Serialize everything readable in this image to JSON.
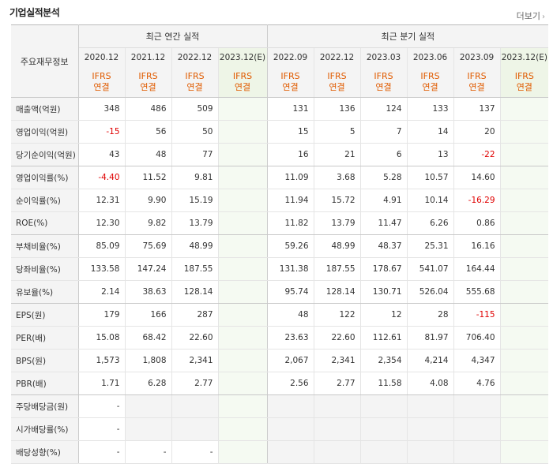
{
  "page_title": "기업실적분석",
  "more_label": "더보기",
  "more_icon": "chevron-right-icon",
  "corner_label": "주요재무정보",
  "group_annual": "최근 연간 실적",
  "group_quarter": "최근 분기 실적",
  "periods": [
    "2020.12",
    "2021.12",
    "2022.12",
    "2023.12(E)",
    "2022.09",
    "2022.12",
    "2023.03",
    "2023.06",
    "2023.09",
    "2023.12(E)"
  ],
  "basis_line1": "IFRS",
  "basis_line2": "연결",
  "rows": [
    {
      "label": "매출액(억원)",
      "values": [
        "348",
        "486",
        "509",
        "",
        "131",
        "136",
        "124",
        "133",
        "137",
        ""
      ]
    },
    {
      "label": "영업이익(억원)",
      "values": [
        "-15",
        "56",
        "50",
        "",
        "15",
        "5",
        "7",
        "14",
        "20",
        ""
      ]
    },
    {
      "label": "당기순이익(억원)",
      "values": [
        "43",
        "48",
        "77",
        "",
        "16",
        "21",
        "6",
        "13",
        "-22",
        ""
      ]
    },
    {
      "label": "영업이익률(%)",
      "values": [
        "-4.40",
        "11.52",
        "9.81",
        "",
        "11.09",
        "3.68",
        "5.28",
        "10.57",
        "14.60",
        ""
      ]
    },
    {
      "label": "순이익률(%)",
      "values": [
        "12.31",
        "9.90",
        "15.19",
        "",
        "11.94",
        "15.72",
        "4.91",
        "10.14",
        "-16.29",
        ""
      ]
    },
    {
      "label": "ROE(%)",
      "values": [
        "12.30",
        "9.82",
        "13.79",
        "",
        "11.82",
        "13.79",
        "11.47",
        "6.26",
        "0.86",
        ""
      ]
    },
    {
      "label": "부채비율(%)",
      "values": [
        "85.09",
        "75.69",
        "48.99",
        "",
        "59.26",
        "48.99",
        "48.37",
        "25.31",
        "16.16",
        ""
      ]
    },
    {
      "label": "당좌비율(%)",
      "values": [
        "133.58",
        "147.24",
        "187.55",
        "",
        "131.38",
        "187.55",
        "178.67",
        "541.07",
        "164.44",
        ""
      ]
    },
    {
      "label": "유보율(%)",
      "values": [
        "2.14",
        "38.63",
        "128.14",
        "",
        "95.74",
        "128.14",
        "130.71",
        "526.04",
        "555.68",
        ""
      ]
    },
    {
      "label": "EPS(원)",
      "values": [
        "179",
        "166",
        "287",
        "",
        "48",
        "122",
        "12",
        "28",
        "-115",
        ""
      ]
    },
    {
      "label": "PER(배)",
      "values": [
        "15.08",
        "68.42",
        "22.60",
        "",
        "23.63",
        "22.60",
        "112.61",
        "81.97",
        "706.40",
        ""
      ]
    },
    {
      "label": "BPS(원)",
      "values": [
        "1,573",
        "1,808",
        "2,341",
        "",
        "2,067",
        "2,341",
        "2,354",
        "4,214",
        "4,347",
        ""
      ]
    },
    {
      "label": "PBR(배)",
      "values": [
        "1.71",
        "6.28",
        "2.77",
        "",
        "2.56",
        "2.77",
        "11.58",
        "4.08",
        "4.76",
        ""
      ]
    },
    {
      "label": "주당배당금(원)",
      "values": [
        "-",
        null,
        null,
        "",
        null,
        null,
        null,
        null,
        null,
        ""
      ]
    },
    {
      "label": "시가배당률(%)",
      "values": [
        "-",
        null,
        null,
        "",
        null,
        null,
        null,
        null,
        null,
        ""
      ]
    },
    {
      "label": "배당성향(%)",
      "values": [
        "-",
        "-",
        "-",
        "",
        null,
        null,
        null,
        null,
        null,
        ""
      ]
    }
  ],
  "colors": {
    "negative": "#e00000",
    "ifrs": "#e05b00",
    "estimate_bg": "#f5faf2"
  }
}
